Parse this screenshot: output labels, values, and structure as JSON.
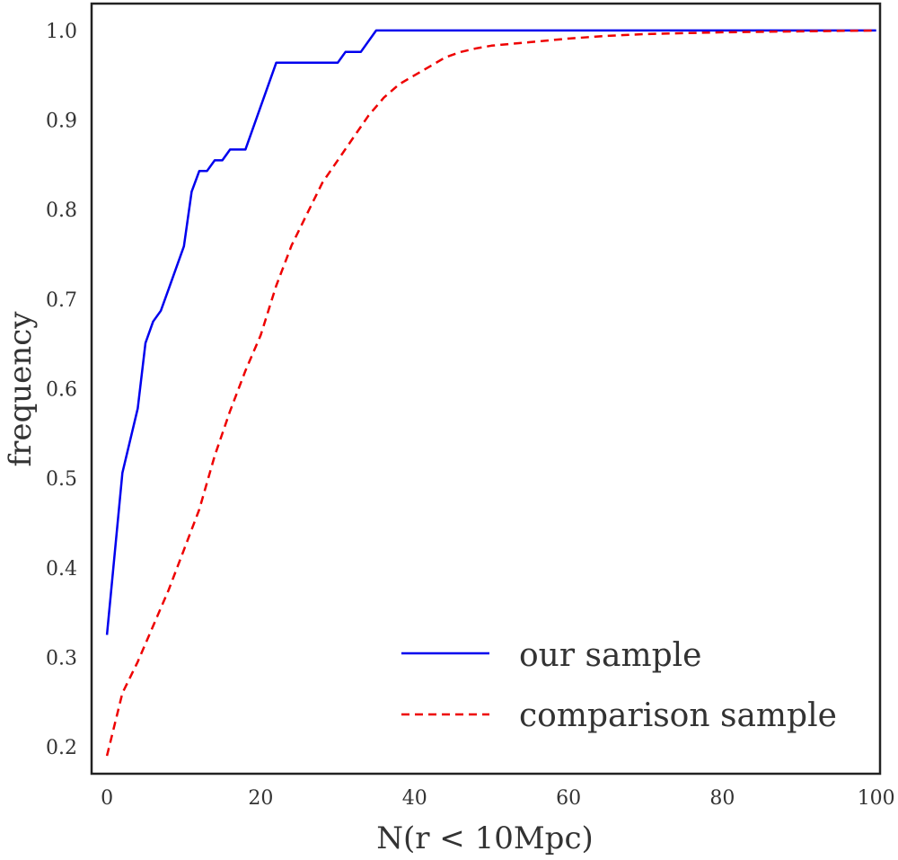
{
  "chart_data": {
    "type": "line",
    "title": "",
    "xlabel": "N(r < 10Mpc)",
    "ylabel": "frequency",
    "xlim": [
      -2,
      100.5
    ],
    "ylim": [
      0.17,
      1.03
    ],
    "xticks": [
      0,
      20,
      40,
      60,
      80,
      100
    ],
    "yticks": [
      0.2,
      0.3,
      0.4,
      0.5,
      0.6,
      0.7,
      0.8,
      0.9,
      1.0
    ],
    "xtick_labels": [
      "0",
      "20",
      "40",
      "60",
      "80",
      "100"
    ],
    "ytick_labels": [
      "0.2",
      "0.3",
      "0.4",
      "0.5",
      "0.6",
      "0.7",
      "0.8",
      "0.9",
      "1.0"
    ],
    "grid": false,
    "legend_position": "lower-right",
    "series": [
      {
        "name": "our sample",
        "color": "#0000ee",
        "style": "solid",
        "x": [
          0,
          2,
          4,
          5,
          6,
          7,
          8,
          10,
          11,
          12,
          13,
          14,
          15,
          16,
          18,
          22,
          26,
          30,
          31,
          33,
          35,
          100
        ],
        "y": [
          0.325,
          0.506,
          0.578,
          0.651,
          0.675,
          0.687,
          0.711,
          0.759,
          0.82,
          0.843,
          0.843,
          0.855,
          0.855,
          0.867,
          0.867,
          0.964,
          0.964,
          0.964,
          0.976,
          0.976,
          1.0,
          1.0
        ]
      },
      {
        "name": "comparison sample",
        "color": "#ee0000",
        "style": "dashed",
        "x": [
          0,
          1,
          2,
          4,
          6,
          8,
          10,
          12,
          14,
          16,
          18,
          20,
          22,
          24,
          26,
          28,
          30,
          32,
          34,
          36,
          38,
          40,
          42,
          44,
          46,
          48,
          50,
          55,
          60,
          65,
          70,
          80,
          90,
          100
        ],
        "y": [
          0.19,
          0.225,
          0.26,
          0.295,
          0.335,
          0.375,
          0.42,
          0.465,
          0.525,
          0.575,
          0.62,
          0.66,
          0.715,
          0.76,
          0.795,
          0.83,
          0.855,
          0.88,
          0.905,
          0.925,
          0.94,
          0.95,
          0.96,
          0.97,
          0.976,
          0.98,
          0.983,
          0.987,
          0.991,
          0.994,
          0.996,
          0.998,
          0.999,
          1.0
        ]
      }
    ]
  }
}
